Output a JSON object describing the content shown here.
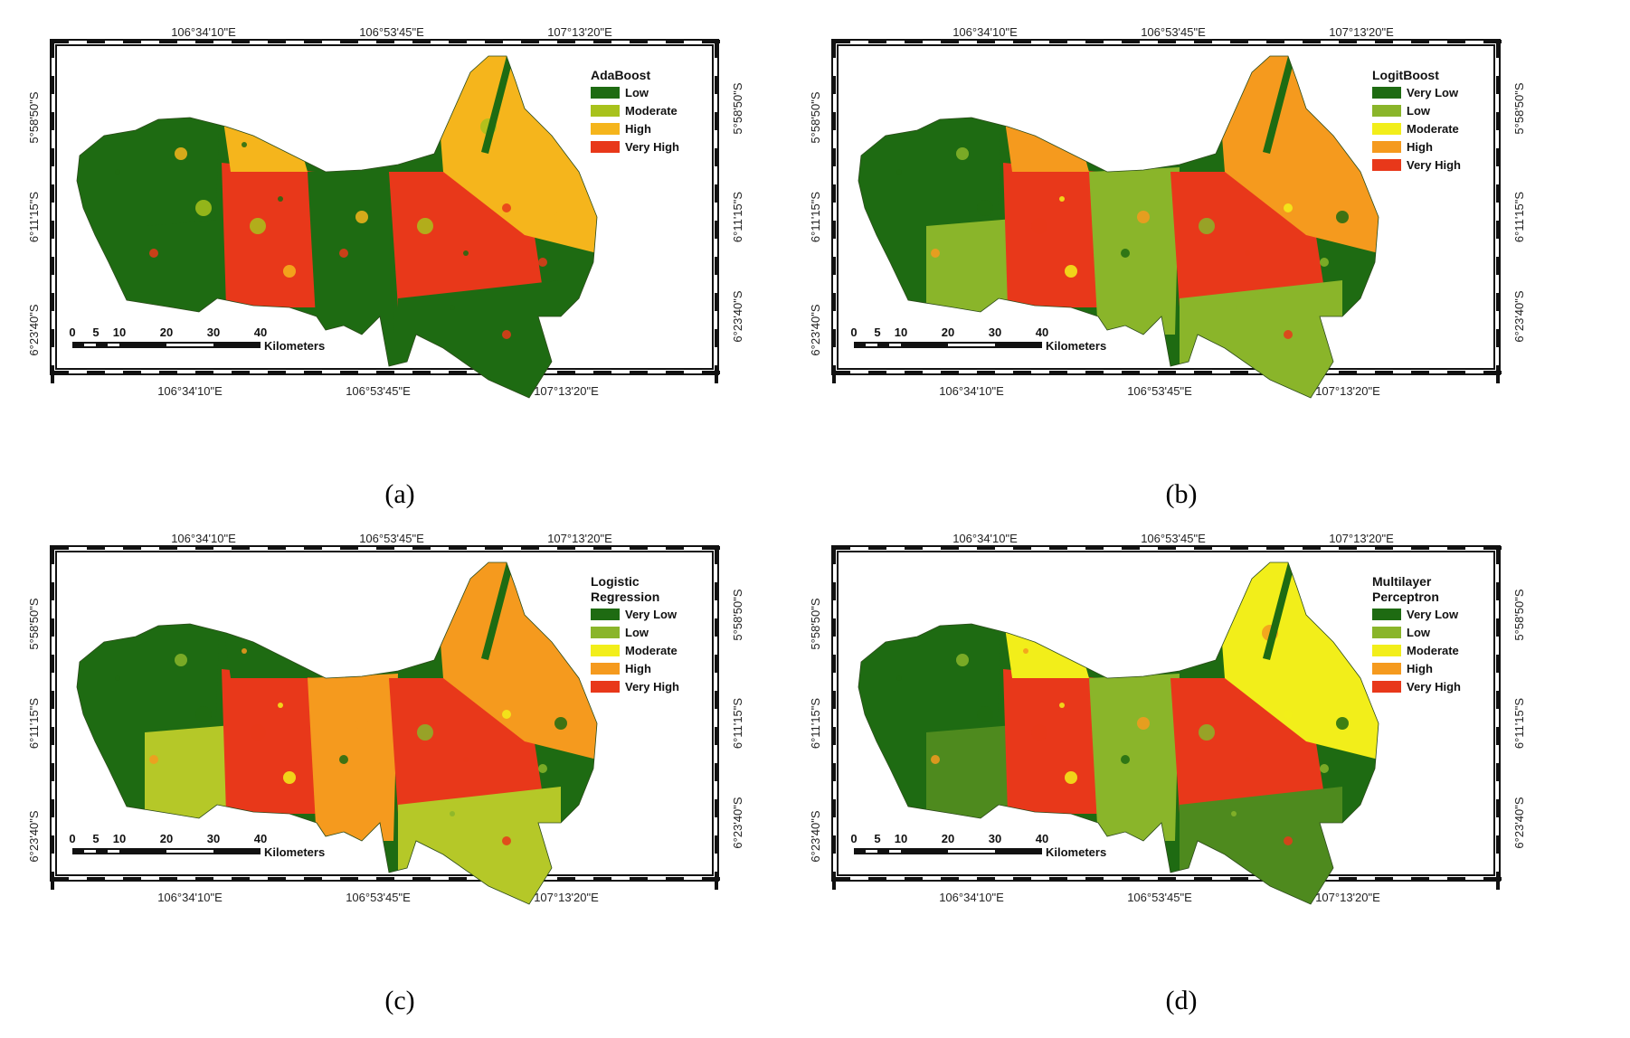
{
  "colors": {
    "very_low": "#1e6b12",
    "low_green": "#8ab52a",
    "moderate_yellow": "#f2ee1a",
    "high_orange": "#f59a1e",
    "very_high_red": "#e8381a",
    "ada_low": "#1e6b12",
    "ada_moderate": "#a8c21c",
    "ada_high": "#f5b51c",
    "ada_very_high": "#e8381a",
    "frame": "#111111"
  },
  "panels": [
    {
      "caption": "(a)",
      "legend_title_lines": [
        "AdaBoost"
      ],
      "legend": [
        {
          "label": "Low",
          "color": "#1e6b12"
        },
        {
          "label": "Moderate",
          "color": "#a8c21c"
        },
        {
          "label": "High",
          "color": "#f5b51c"
        },
        {
          "label": "Very High",
          "color": "#e8381a"
        }
      ],
      "zone_colors": [
        "#1e6b12",
        "#1e6b12",
        "#e8381a",
        "#1e6b12",
        "#e8381a",
        "#f5b51c",
        "#f5b51c",
        "#1e6b12"
      ]
    },
    {
      "caption": "(b)",
      "legend_title_lines": [
        "LogitBoost"
      ],
      "legend": [
        {
          "label": "Very Low",
          "color": "#1e6b12"
        },
        {
          "label": "Low",
          "color": "#8ab52a"
        },
        {
          "label": "Moderate",
          "color": "#f2ee1a"
        },
        {
          "label": "High",
          "color": "#f59a1e"
        },
        {
          "label": "Very High",
          "color": "#e8381a"
        }
      ],
      "zone_colors": [
        "#1e6b12",
        "#8ab52a",
        "#e8381a",
        "#8ab52a",
        "#e8381a",
        "#f59a1e",
        "#f59a1e",
        "#8ab52a"
      ]
    },
    {
      "caption": "(c)",
      "legend_title_lines": [
        "Logistic",
        "Regression"
      ],
      "legend": [
        {
          "label": "Very Low",
          "color": "#1e6b12"
        },
        {
          "label": "Low",
          "color": "#8ab52a"
        },
        {
          "label": "Moderate",
          "color": "#f2ee1a"
        },
        {
          "label": "High",
          "color": "#f59a1e"
        },
        {
          "label": "Very High",
          "color": "#e8381a"
        }
      ],
      "zone_colors": [
        "#1e6b12",
        "#b5c828",
        "#e8381a",
        "#f59a1e",
        "#e8381a",
        "#f59a1e",
        "#1e6b12",
        "#b5c828"
      ]
    },
    {
      "caption": "(d)",
      "legend_title_lines": [
        "Multilayer",
        "Perceptron"
      ],
      "legend": [
        {
          "label": "Very Low",
          "color": "#1e6b12"
        },
        {
          "label": "Low",
          "color": "#8ab52a"
        },
        {
          "label": "Moderate",
          "color": "#f2ee1a"
        },
        {
          "label": "High",
          "color": "#f59a1e"
        },
        {
          "label": "Very High",
          "color": "#e8381a"
        }
      ],
      "zone_colors": [
        "#1e6b12",
        "#4e8a1e",
        "#e8381a",
        "#8ab52a",
        "#e8381a",
        "#f2ee1a",
        "#f2ee1a",
        "#4e8a1e"
      ]
    }
  ],
  "axis_labels": {
    "top": [
      "106°34'10\"E",
      "106°53'45\"E",
      "107°13'20\"E"
    ],
    "bottom": [
      "106°34'10\"E",
      "106°53'45\"E",
      "107°13'20\"E"
    ],
    "left": [
      "5°58'50\"S",
      "6°11'15\"S",
      "6°23'40\"S"
    ],
    "right": [
      "5°58'50\"S",
      "6°11'15\"S",
      "6°23'40\"S"
    ]
  },
  "scale_bar": {
    "ticks": [
      "0",
      "5",
      "10",
      "20",
      "30",
      "40"
    ],
    "unit": "Kilometers"
  }
}
